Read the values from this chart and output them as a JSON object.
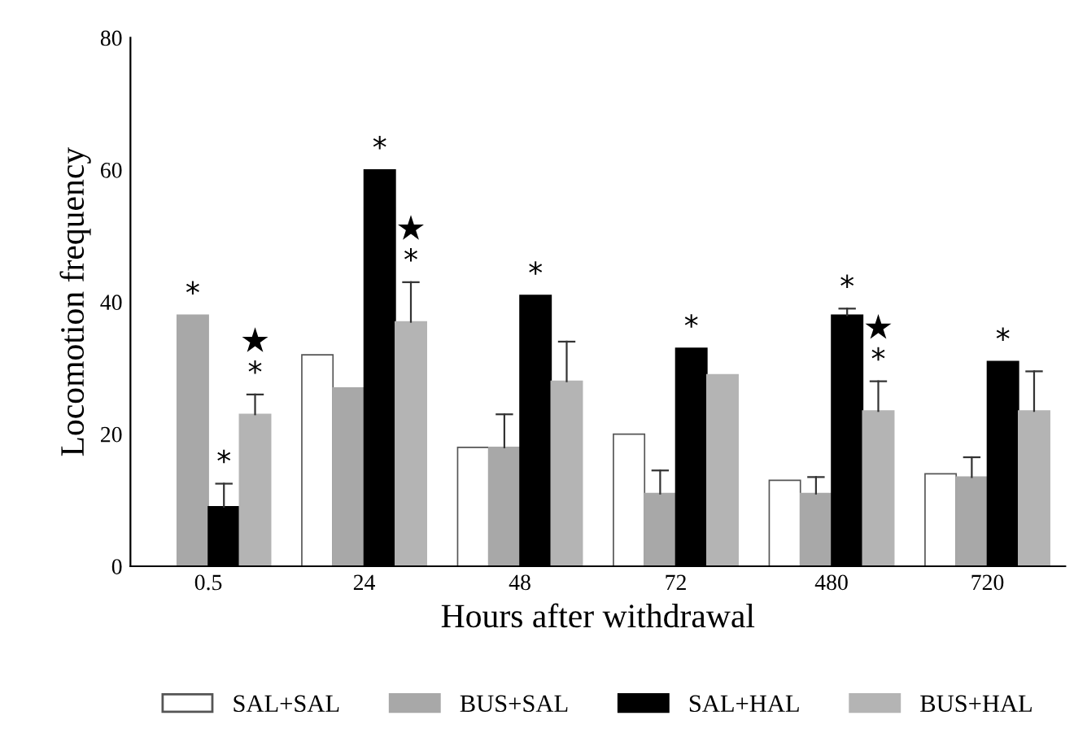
{
  "chart_data": {
    "type": "bar",
    "xlabel": "Hours after withdrawal",
    "ylabel": "Locomotion frequency",
    "categories": [
      "0.5",
      "24",
      "48",
      "72",
      "480",
      "720"
    ],
    "series": [
      {
        "name": "SAL+SAL",
        "color": "#ffffff",
        "values": [
          null,
          32,
          18,
          20,
          13,
          14
        ],
        "errors": [
          null,
          null,
          null,
          null,
          null,
          null
        ]
      },
      {
        "name": "BUS+SAL",
        "color": "#a8a8a8",
        "values": [
          38,
          27,
          18,
          11,
          11,
          13.5
        ],
        "errors": [
          null,
          null,
          [
            18,
            23
          ],
          [
            11,
            14.5
          ],
          [
            11,
            13.5
          ],
          [
            13.5,
            16.5
          ]
        ]
      },
      {
        "name": "SAL+HAL",
        "color": "#000000",
        "values": [
          9,
          60,
          41,
          33,
          38,
          31
        ],
        "errors": [
          [
            9,
            12.5
          ],
          null,
          null,
          null,
          [
            38,
            39
          ],
          null
        ]
      },
      {
        "name": "BUS+HAL",
        "color": "#b4b4b4",
        "values": [
          23,
          37,
          28,
          29,
          23.5,
          23.5
        ],
        "errors": [
          [
            23,
            26
          ],
          [
            37,
            43
          ],
          [
            28,
            34
          ],
          null,
          [
            23.5,
            28
          ],
          [
            23.5,
            29.5
          ]
        ]
      }
    ],
    "ylim": [
      0,
      80
    ],
    "yticks": [
      0,
      20,
      40,
      60,
      80
    ],
    "legend": "bottom",
    "grid": false,
    "annotations": [
      {
        "text": "*",
        "x": "0.5",
        "y": 38
      },
      {
        "text": "*",
        "x": "0.5",
        "y": 12.5
      },
      {
        "text": "*",
        "x": "0.5",
        "y": 26
      },
      {
        "text": "★",
        "x": "0.5",
        "y": 26
      },
      {
        "text": "*",
        "x": "24",
        "y": 60
      },
      {
        "text": "*",
        "x": "24",
        "y": 43
      },
      {
        "text": "★",
        "x": "24",
        "y": 43
      },
      {
        "text": "*",
        "x": "48",
        "y": 41
      },
      {
        "text": "*",
        "x": "72",
        "y": 33
      },
      {
        "text": "*",
        "x": "480",
        "y": 39
      },
      {
        "text": "*",
        "x": "480",
        "y": 28
      },
      {
        "text": "★",
        "x": "480",
        "y": 28
      },
      {
        "text": "*",
        "x": "720",
        "y": 31
      }
    ]
  }
}
